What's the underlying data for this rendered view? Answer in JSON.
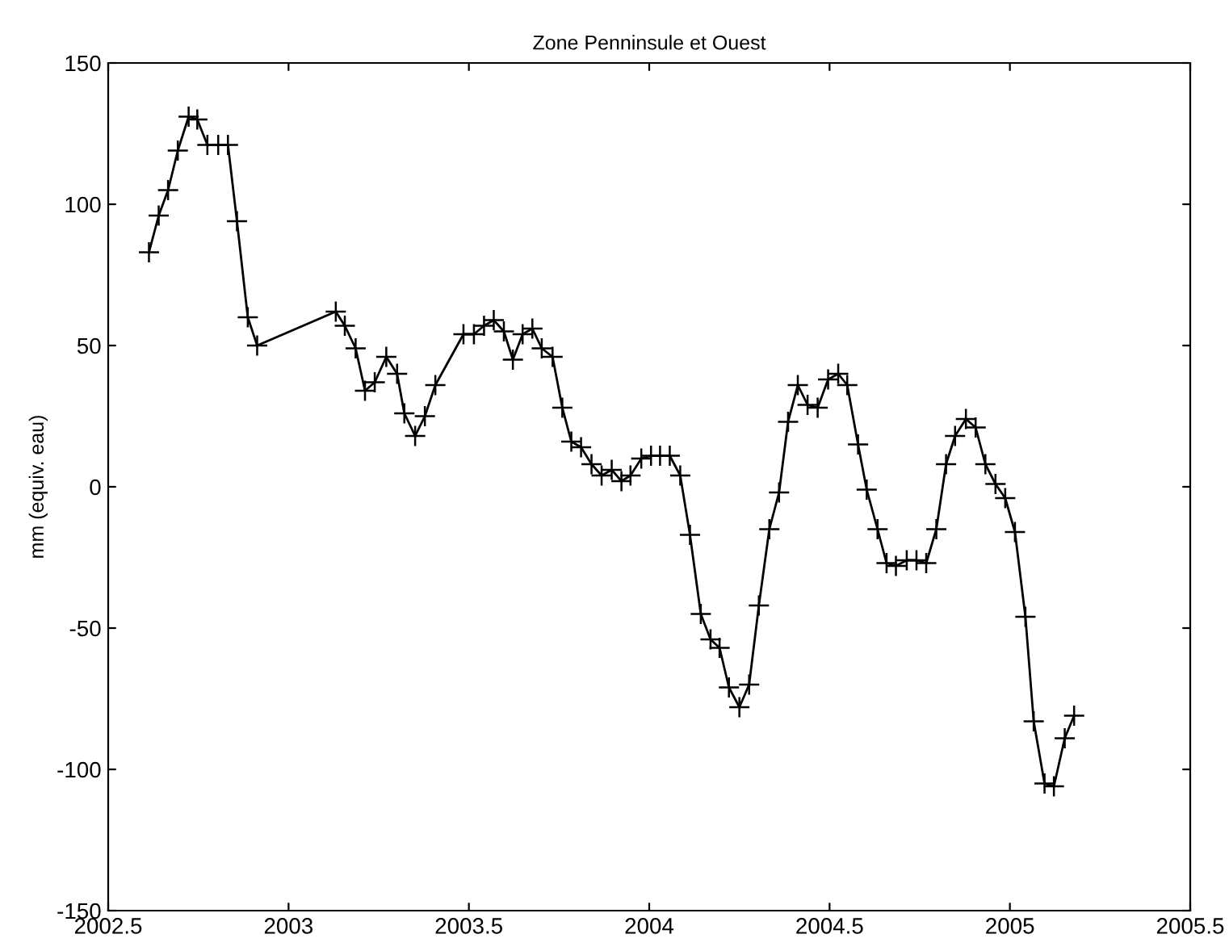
{
  "chart_data": {
    "type": "line",
    "title": "Zone Penninsule et Ouest",
    "ylabel": "mm (equiv. eau)",
    "x": [
      2002.613,
      2002.64,
      2002.666,
      2002.693,
      2002.723,
      2002.747,
      2002.775,
      2002.805,
      2002.832,
      2002.857,
      2002.887,
      2002.913,
      2003.131,
      2003.156,
      2003.186,
      2003.212,
      2003.239,
      2003.271,
      2003.301,
      2003.321,
      2003.351,
      2003.378,
      2003.407,
      2003.485,
      2003.514,
      2003.542,
      2003.569,
      2003.597,
      2003.622,
      2003.649,
      2003.676,
      2003.702,
      2003.732,
      2003.759,
      2003.784,
      2003.811,
      2003.84,
      2003.868,
      2003.896,
      2003.923,
      2003.948,
      2003.978,
      2004.005,
      2004.03,
      2004.057,
      2004.086,
      2004.113,
      2004.143,
      2004.17,
      2004.195,
      2004.221,
      2004.25,
      2004.277,
      2004.304,
      2004.333,
      2004.36,
      2004.385,
      2004.412,
      2004.439,
      2004.467,
      2004.496,
      2004.524,
      2004.549,
      2004.579,
      2004.603,
      2004.633,
      2004.658,
      2004.684,
      2004.714,
      2004.741,
      2004.768,
      2004.796,
      2004.823,
      2004.848,
      2004.878,
      2004.905,
      2004.932,
      2004.96,
      2004.987,
      2005.014,
      2005.043,
      2005.066,
      2005.096,
      2005.122,
      2005.152,
      2005.178
    ],
    "series": [
      {
        "color": "#000000",
        "values": [
          83,
          96,
          105,
          119,
          131,
          130,
          121,
          121,
          121,
          94,
          60,
          50,
          62,
          57,
          49,
          34,
          37,
          46,
          40,
          26,
          18,
          25,
          36,
          54,
          54,
          57,
          59,
          55,
          45,
          54,
          56,
          49,
          46,
          28,
          16,
          14,
          8,
          4,
          6,
          2,
          4,
          10,
          11,
          11,
          11,
          4,
          -17,
          -45,
          -54,
          -57,
          -71,
          -78,
          -70,
          -42,
          -15,
          -2,
          23,
          36,
          29,
          28,
          38,
          40,
          36,
          15,
          -1,
          -15,
          -27,
          -28,
          -26,
          -26,
          -27,
          -15,
          8,
          18,
          24,
          21,
          8,
          1,
          -4,
          -16,
          -46,
          -83,
          -105,
          -106,
          -89,
          -81
        ]
      }
    ],
    "xlim": [
      2002.5,
      2005.5
    ],
    "xticks": [
      2002.5,
      2003,
      2003.5,
      2004,
      2004.5,
      2005,
      2005.5
    ],
    "ylim": [
      -150,
      150
    ],
    "yticks": [
      -150,
      -100,
      -50,
      0,
      50,
      100,
      150
    ],
    "marker": "cross",
    "line_style": "solid",
    "grid": false,
    "legend": false
  }
}
